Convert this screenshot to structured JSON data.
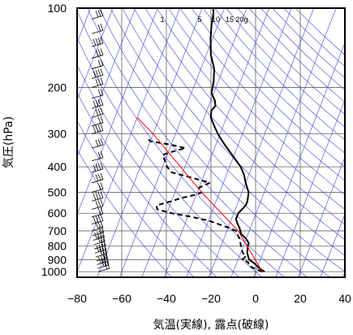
{
  "chart_data": {
    "type": "line",
    "subtype": "skew-T log-P diagram",
    "xlabel": "気温(実線), 露点(破線)",
    "ylabel": "気圧(hPa)",
    "xlim": [
      -80,
      40
    ],
    "ylim_pressure": [
      1050,
      100
    ],
    "y_scale": "log",
    "x_ticks": [
      "−80",
      "−60",
      "−40",
      "−20",
      "0",
      "20",
      "40"
    ],
    "x_tick_values": [
      -80,
      -60,
      -40,
      -20,
      0,
      20,
      40
    ],
    "y_ticks": [
      "100",
      "200",
      "300",
      "400",
      "500",
      "600",
      "700",
      "800",
      "900",
      "1000"
    ],
    "y_tick_values": [
      100,
      200,
      300,
      400,
      500,
      600,
      700,
      800,
      900,
      1000
    ],
    "grid": true,
    "mixing_ratio_labels": [
      "1",
      "5",
      "10",
      "15",
      "20g"
    ],
    "series": [
      {
        "style": "solid",
        "color": "#000000",
        "points": [
          [
            1000,
            4
          ],
          [
            970,
            1
          ],
          [
            930,
            -2
          ],
          [
            900,
            -5
          ],
          [
            850,
            -7
          ],
          [
            800,
            -8
          ],
          [
            780,
            -8
          ],
          [
            750,
            -10
          ],
          [
            720,
            -13
          ],
          [
            700,
            -14
          ],
          [
            680,
            -15
          ],
          [
            650,
            -17
          ],
          [
            630,
            -18
          ],
          [
            600,
            -18
          ],
          [
            560,
            -16
          ],
          [
            540,
            -16
          ],
          [
            500,
            -17
          ],
          [
            460,
            -20
          ],
          [
            430,
            -22
          ],
          [
            400,
            -25
          ],
          [
            360,
            -31
          ],
          [
            330,
            -36
          ],
          [
            300,
            -41
          ],
          [
            280,
            -44
          ],
          [
            260,
            -47
          ],
          [
            245,
            -48
          ],
          [
            235,
            -47
          ],
          [
            225,
            -48
          ],
          [
            210,
            -51
          ],
          [
            190,
            -52
          ],
          [
            170,
            -54
          ],
          [
            150,
            -58
          ],
          [
            130,
            -61
          ],
          [
            115,
            -63
          ],
          [
            105,
            -64
          ],
          [
            100,
            -65
          ]
        ]
      },
      {
        "style": "dashed",
        "color": "#000000",
        "points": [
          [
            1000,
            3
          ],
          [
            980,
            0
          ],
          [
            950,
            -4
          ],
          [
            920,
            -5
          ],
          [
            900,
            -8
          ],
          [
            870,
            -7
          ],
          [
            850,
            -9
          ],
          [
            800,
            -11
          ],
          [
            750,
            -13
          ],
          [
            700,
            -16
          ],
          [
            680,
            -20
          ],
          [
            660,
            -25
          ],
          [
            640,
            -30
          ],
          [
            620,
            -38
          ],
          [
            600,
            -48
          ],
          [
            580,
            -55
          ],
          [
            560,
            -56
          ],
          [
            540,
            -50
          ],
          [
            525,
            -46
          ],
          [
            510,
            -40
          ],
          [
            500,
            -38
          ],
          [
            480,
            -40
          ],
          [
            460,
            -36
          ],
          [
            440,
            -45
          ],
          [
            420,
            -55
          ],
          [
            400,
            -58
          ],
          [
            380,
            -60
          ],
          [
            360,
            -62
          ],
          [
            350,
            -58
          ],
          [
            340,
            -53
          ],
          [
            330,
            -60
          ],
          [
            320,
            -70
          ],
          [
            310,
            -72
          ]
        ]
      },
      {
        "style": "solid",
        "color": "#ff0000",
        "points": [
          [
            1000,
            3
          ],
          [
            700,
            -15
          ],
          [
            500,
            -38
          ],
          [
            300,
            -70
          ],
          [
            260,
            -80
          ]
        ]
      }
    ]
  }
}
